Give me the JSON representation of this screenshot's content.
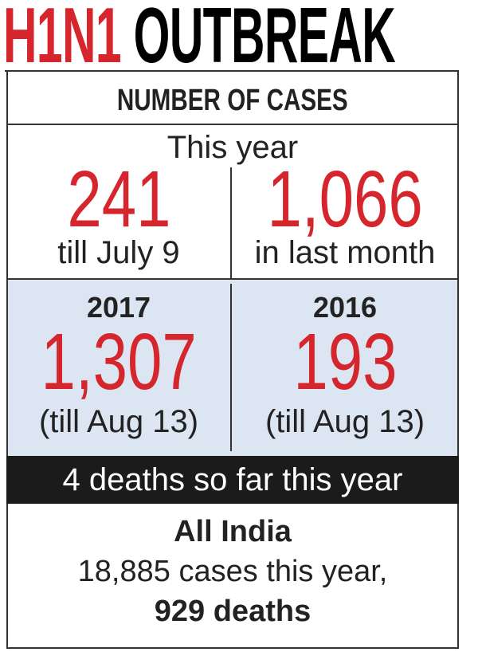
{
  "header": {
    "title_highlight": "H1N1",
    "title": "OUTBREAK"
  },
  "table": {
    "heading": "NUMBER OF CASES",
    "subheading": "This year",
    "cells": [
      {
        "value": "241",
        "note": "till July 9"
      },
      {
        "value": "1,066",
        "note": "in last month"
      },
      {
        "year": "2017",
        "value": "1,307",
        "note": "(till Aug 13)"
      },
      {
        "year": "2016",
        "value": "193",
        "note": "(till Aug 13)"
      }
    ]
  },
  "banner": "4 deaths so far this year",
  "footer": {
    "title": "All India",
    "line1": "18,885 cases this year,",
    "line2": "929 deaths"
  }
}
